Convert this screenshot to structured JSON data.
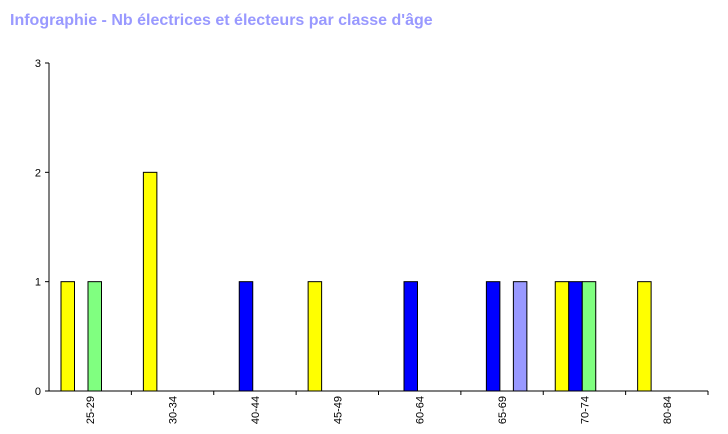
{
  "chart_data": {
    "type": "bar",
    "title": "Infographie - Nb électrices et électeurs par classe d'âge",
    "xlabel": "",
    "ylabel": "",
    "ylim": [
      0,
      3
    ],
    "yticks": [
      "0",
      "1",
      "2",
      "3"
    ],
    "categories": [
      "25-29",
      "30-34",
      "40-44",
      "45-49",
      "60-64",
      "65-69",
      "70-74",
      "80-84"
    ],
    "series": [
      {
        "color": "#ffff00",
        "values": [
          1,
          2,
          0,
          1,
          0,
          0,
          1,
          1
        ]
      },
      {
        "color": "#0000ff",
        "values": [
          0,
          0,
          1,
          0,
          1,
          1,
          1,
          0
        ]
      },
      {
        "color": "#80ff80",
        "values": [
          1,
          0,
          0,
          0,
          0,
          0,
          1,
          0
        ]
      },
      {
        "color": "#9999ff",
        "values": [
          0,
          0,
          0,
          0,
          0,
          1,
          0,
          0
        ]
      }
    ],
    "colors": {
      "title": "#9999ff",
      "axis": "#000000",
      "bar_outline": "#000000"
    }
  }
}
